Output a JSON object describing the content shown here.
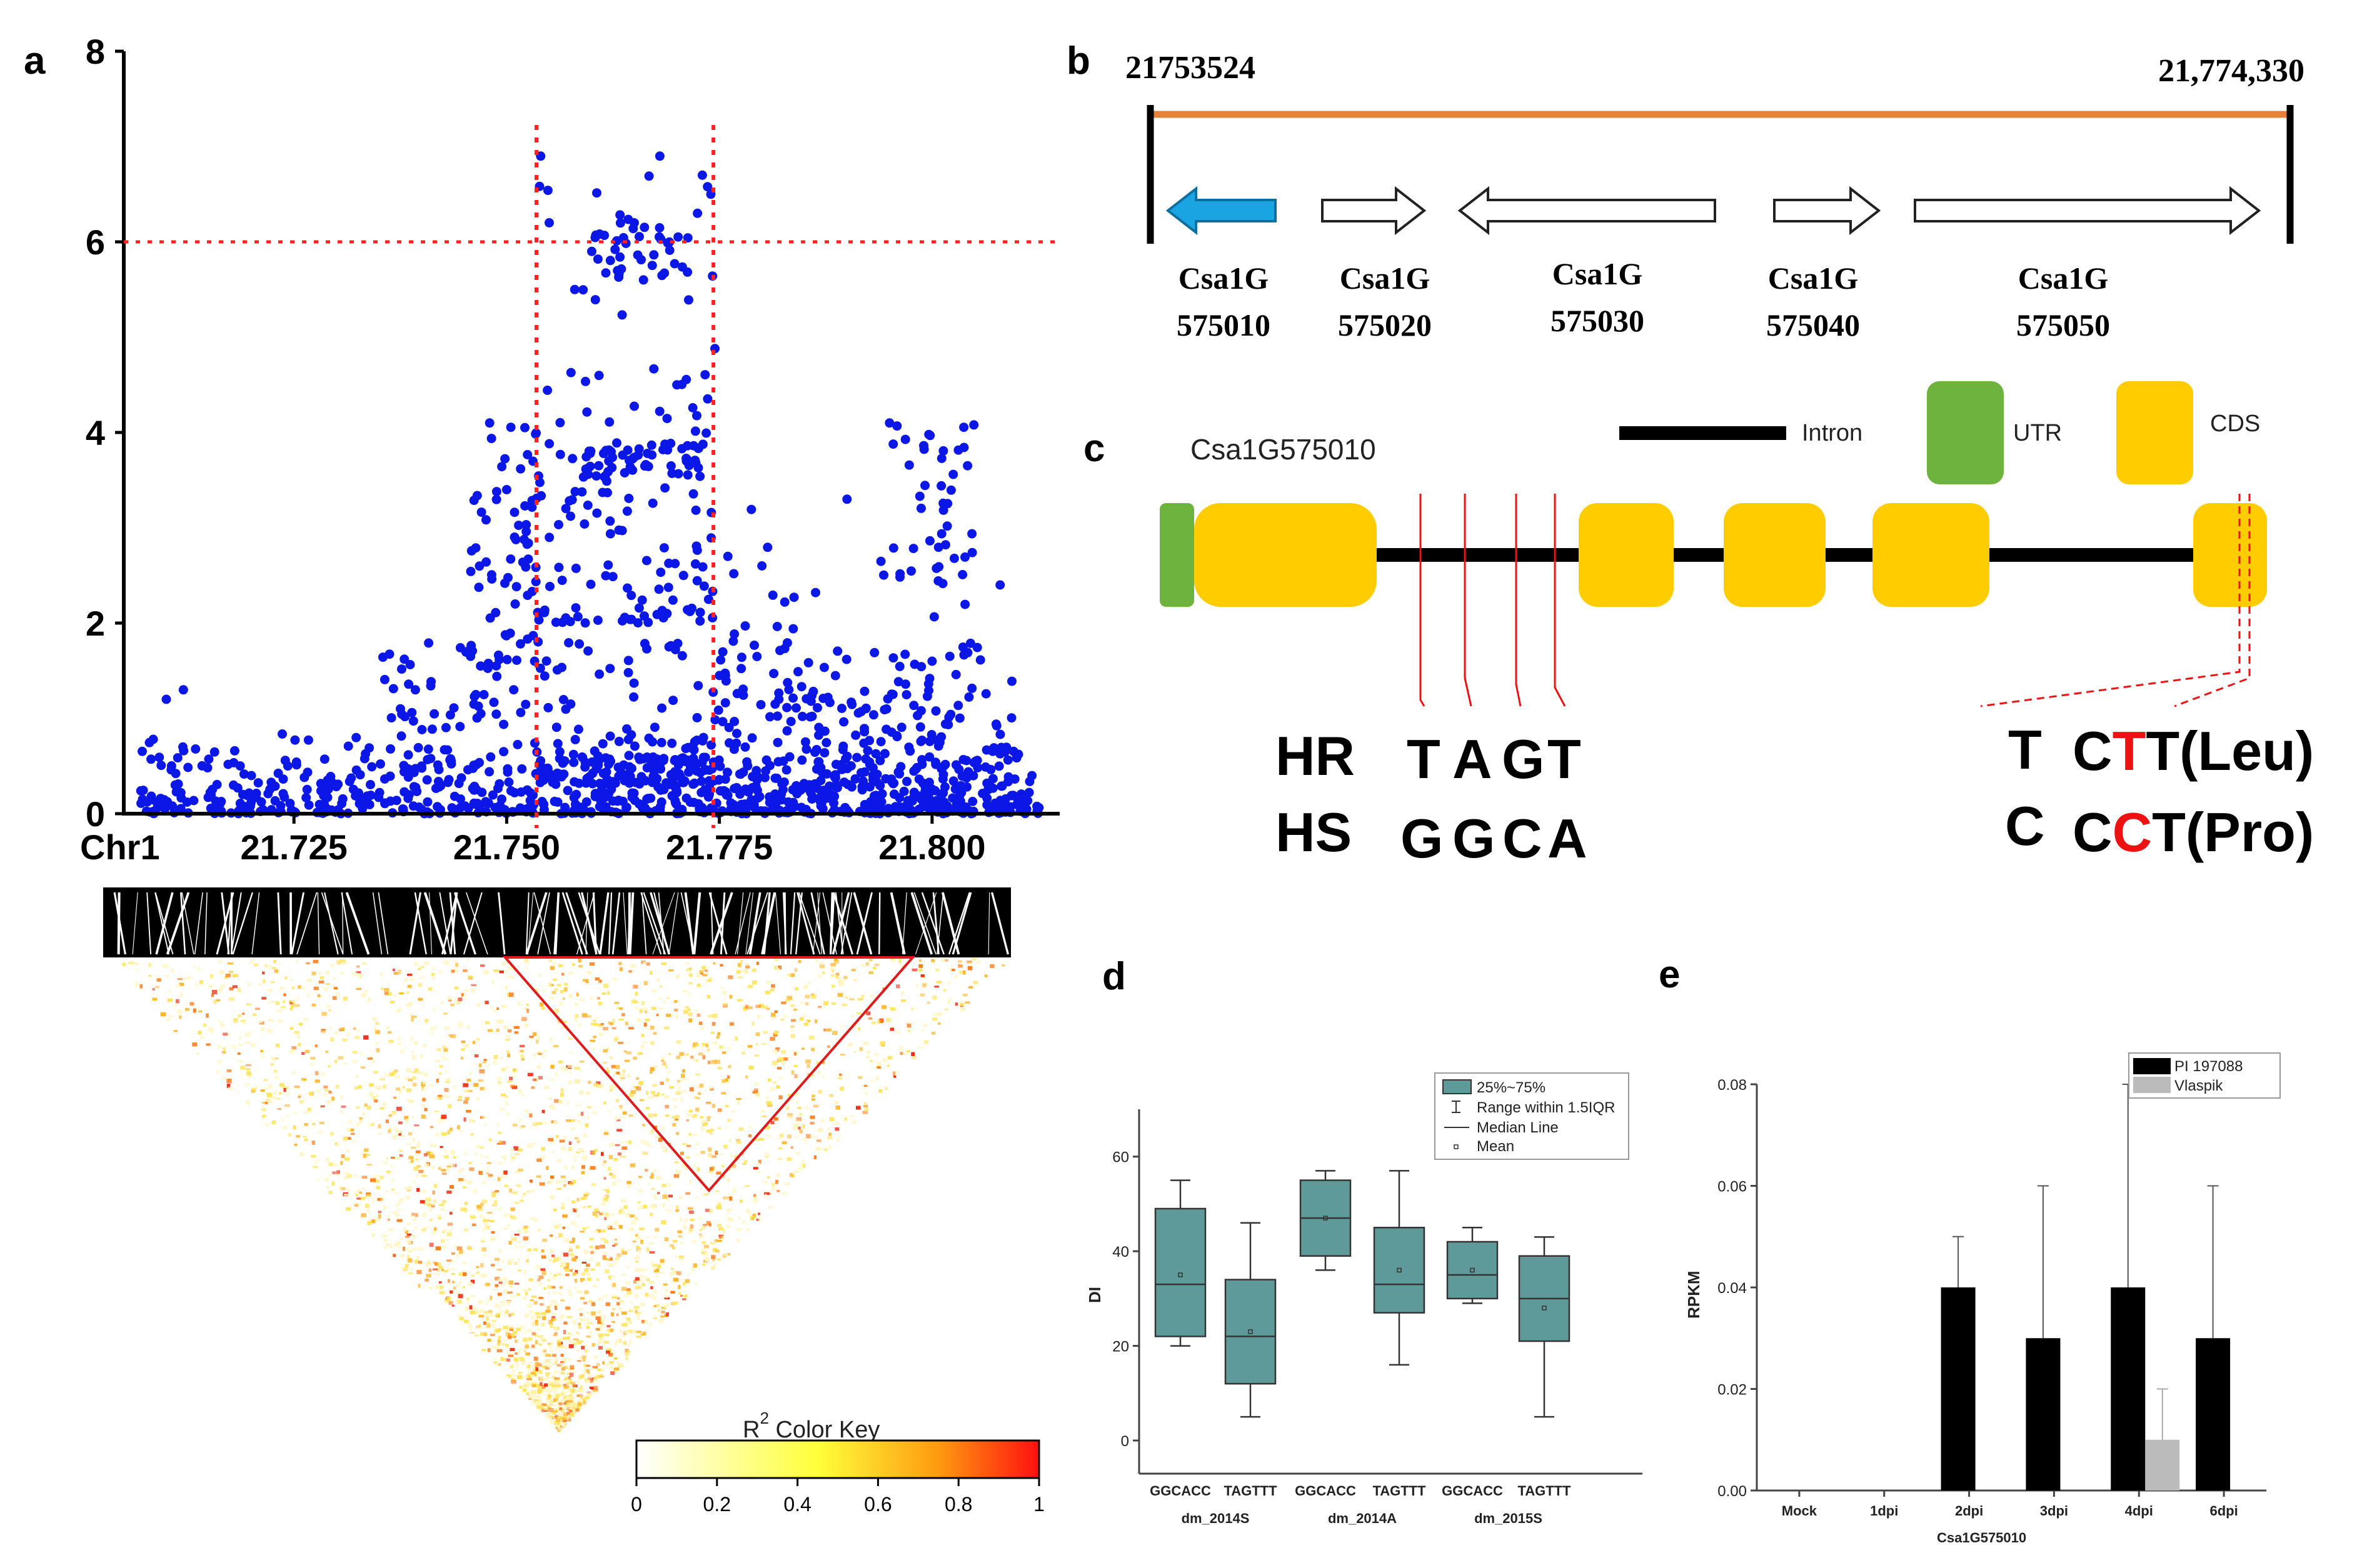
{
  "chart_data": [
    {
      "id": "a",
      "type": "scatter",
      "panel_label": "a",
      "x_axis_label": "Chr1",
      "x_ticks": [
        "21.725",
        "21.750",
        "21.775",
        "21.800"
      ],
      "x_tick_values": [
        21.725,
        21.75,
        21.775,
        21.8
      ],
      "xlim": [
        21.705,
        21.815
      ],
      "y_ticks": [
        "0",
        "2",
        "4",
        "6",
        "8"
      ],
      "ylim": [
        0,
        8
      ],
      "threshold_y": 6,
      "interval_x": [
        21.7535,
        21.7743
      ],
      "series_color": "#0b17e6",
      "line_color": "#ff2020",
      "description": "-log10(p) of ~1500 SNPs along chromosome 1; tall cluster between the red dotted bounds peaks near 6.9",
      "points_sample": [
        [
          21.71,
          1.2
        ],
        [
          21.712,
          1.3
        ],
        [
          21.72,
          0.4
        ],
        [
          21.73,
          0.3
        ],
        [
          21.74,
          0.5
        ],
        [
          21.748,
          4.1
        ],
        [
          21.75,
          3.4
        ],
        [
          21.751,
          2.2
        ],
        [
          21.754,
          6.9
        ],
        [
          21.755,
          6.2
        ],
        [
          21.758,
          5.5
        ],
        [
          21.76,
          5.9
        ],
        [
          21.762,
          3.7
        ],
        [
          21.765,
          6.2
        ],
        [
          21.768,
          6.9
        ],
        [
          21.77,
          4.5
        ],
        [
          21.773,
          6.7
        ],
        [
          21.774,
          6.5
        ],
        [
          21.776,
          2.7
        ],
        [
          21.78,
          2.6
        ],
        [
          21.79,
          3.3
        ],
        [
          21.795,
          4.1
        ],
        [
          21.8,
          1.6
        ],
        [
          21.808,
          2.4
        ]
      ]
    },
    {
      "id": "a-ld",
      "type": "heatmap",
      "title": "R² Color Key",
      "title_base": "R",
      "title_sup": "2",
      "title_rest": " Color Key",
      "key_ticks": [
        "0",
        "0.2",
        "0.4",
        "0.6",
        "0.8",
        "1"
      ],
      "key_values": [
        0,
        0.2,
        0.4,
        0.6,
        0.8,
        1
      ],
      "colors": [
        "#ffffff",
        "#ffff3a",
        "#ff9a10",
        "#ff1010"
      ],
      "block_color": "#e01b1b"
    },
    {
      "id": "b",
      "type": "table",
      "panel_label": "b",
      "start_coord": "21753524",
      "end_coord": "21,774,330",
      "track_color": "#e8823a",
      "genes": [
        {
          "line1": "Csa1G",
          "line2": "575010",
          "direction": "reverse",
          "highlight": true
        },
        {
          "line1": "Csa1G",
          "line2": "575020",
          "direction": "forward",
          "highlight": false
        },
        {
          "line1": "Csa1G",
          "line2": "575030",
          "direction": "reverse",
          "highlight": false
        },
        {
          "line1": "Csa1G",
          "line2": "575040",
          "direction": "forward",
          "highlight": false
        },
        {
          "line1": "Csa1G",
          "line2": "575050",
          "direction": "forward",
          "highlight": false
        }
      ],
      "highlight_color": "#1ba4e2"
    },
    {
      "id": "c",
      "type": "table",
      "panel_label": "c",
      "gene_name": "Csa1G575010",
      "legend": {
        "intron": "Intron",
        "utr": "UTR",
        "cds": "CDS"
      },
      "utr_color": "#6fb33f",
      "cds_color": "#ffcc00",
      "row_hr": {
        "label": "HR",
        "bases": [
          "T",
          "A",
          "G",
          "T"
        ]
      },
      "row_hs": {
        "label": "HS",
        "bases": [
          "G",
          "G",
          "C",
          "A"
        ]
      },
      "snp_hr": {
        "allele": "T",
        "codon_prefix": "C",
        "codon_mut": "T",
        "codon_suffix": "T(Leu)"
      },
      "snp_hs": {
        "allele": "C",
        "codon_prefix": "C",
        "codon_mut": "C",
        "codon_suffix": "T(Pro)"
      },
      "mut_color": "#ee1111"
    },
    {
      "id": "d",
      "type": "bar",
      "subtype": "box",
      "panel_label": "d",
      "ylabel": "DI",
      "y_ticks": [
        "0",
        "20",
        "40",
        "60"
      ],
      "ylim": [
        -7,
        70
      ],
      "categories": [
        "GGCACC",
        "TAGTTT",
        "GGCACC",
        "TAGTTT",
        "GGCACC",
        "TAGTTT"
      ],
      "groups": [
        "dm_2014S",
        "dm_2014A",
        "dm_2015S"
      ],
      "box_color": "#5f9a9a",
      "legend": [
        "25%~75%",
        "Range within 1.5IQR",
        "Median Line",
        "Mean"
      ],
      "boxes": [
        {
          "min": 20,
          "q1": 22,
          "median": 33,
          "q3": 49,
          "max": 55,
          "mean": 35
        },
        {
          "min": 5,
          "q1": 12,
          "median": 22,
          "q3": 34,
          "max": 46,
          "mean": 23
        },
        {
          "min": 36,
          "q1": 39,
          "median": 47,
          "q3": 55,
          "max": 57,
          "mean": 47
        },
        {
          "min": 16,
          "q1": 27,
          "median": 33,
          "q3": 45,
          "max": 57,
          "mean": 36
        },
        {
          "min": 29,
          "q1": 30,
          "median": 35,
          "q3": 42,
          "max": 45,
          "mean": 36
        },
        {
          "min": 5,
          "q1": 21,
          "median": 30,
          "q3": 39,
          "max": 43,
          "mean": 28
        }
      ]
    },
    {
      "id": "e",
      "type": "bar",
      "panel_label": "e",
      "ylabel": "RPKM",
      "xlabel": "Csa1G575010",
      "y_ticks": [
        "0.00",
        "0.02",
        "0.04",
        "0.06",
        "0.08"
      ],
      "ylim": [
        0,
        0.08
      ],
      "categories": [
        "Mock",
        "1dpi",
        "2dpi",
        "3dpi",
        "4dpi",
        "6dpi"
      ],
      "series": [
        {
          "name": "PI 197088",
          "color": "#000000",
          "values": [
            0,
            0,
            0.04,
            0.03,
            0.04,
            0.03
          ],
          "errors": [
            0,
            0,
            0.01,
            0.03,
            0.04,
            0.03
          ]
        },
        {
          "name": "Vlaspik",
          "color": "#bbbbbb",
          "values": [
            0,
            0,
            0,
            0,
            0.01,
            0
          ],
          "errors": [
            0,
            0,
            0,
            0,
            0.01,
            0
          ]
        }
      ]
    }
  ]
}
